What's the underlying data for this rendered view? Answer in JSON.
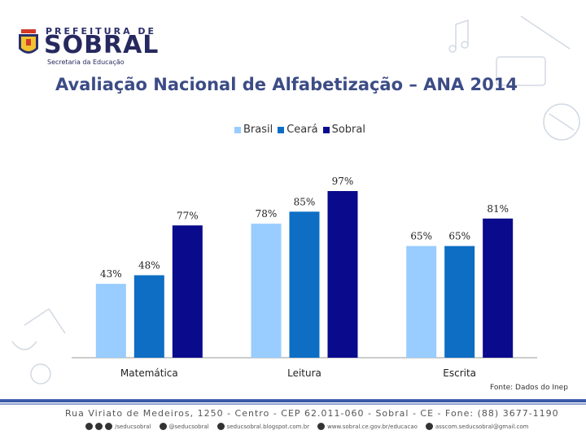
{
  "logo": {
    "top": "PREFEITURA DE",
    "main": "SOBRAL",
    "sub": "Secretaria da Educação"
  },
  "source": "Fonte: Dados do Inep",
  "footer": {
    "address": "Rua Viriato de Medeiros, 1250 - Centro - CEP 62.011-060 - Sobral - CE - Fone: (88) 3677-1190",
    "social": [
      {
        "icon": "social-icon",
        "label": "/seducsobral"
      },
      {
        "icon": "twitter-icon",
        "label": "@seducsobral"
      },
      {
        "icon": "blog-icon",
        "label": "seducsobral.blogspot.com.br"
      },
      {
        "icon": "web-icon",
        "label": "www.sobral.ce.gov.br/educacao"
      },
      {
        "icon": "email-icon",
        "label": "asscom.seducsobral@gmail.com"
      }
    ]
  },
  "colors": {
    "brasil": "#99ccff",
    "ceara": "#0d6ec4",
    "sobral": "#0a0a8c",
    "title": "#3c4c86"
  },
  "chart_data": {
    "type": "bar",
    "title": "Avaliação Nacional de Alfabetização – ANA 2014",
    "categories": [
      "Matemática",
      "Leitura",
      "Escrita"
    ],
    "series": [
      {
        "name": "Brasil",
        "values": [
          43,
          78,
          65
        ],
        "labels": [
          "43%",
          "78%",
          "65%"
        ]
      },
      {
        "name": "Ceará",
        "values": [
          48,
          85,
          65
        ],
        "labels": [
          "48%",
          "85%",
          "65%"
        ]
      },
      {
        "name": "Sobral",
        "values": [
          77,
          97,
          81
        ],
        "labels": [
          "77%",
          "97%",
          "81%"
        ]
      }
    ],
    "ylim": [
      0,
      100
    ],
    "grid": false,
    "legend": "top-center"
  }
}
